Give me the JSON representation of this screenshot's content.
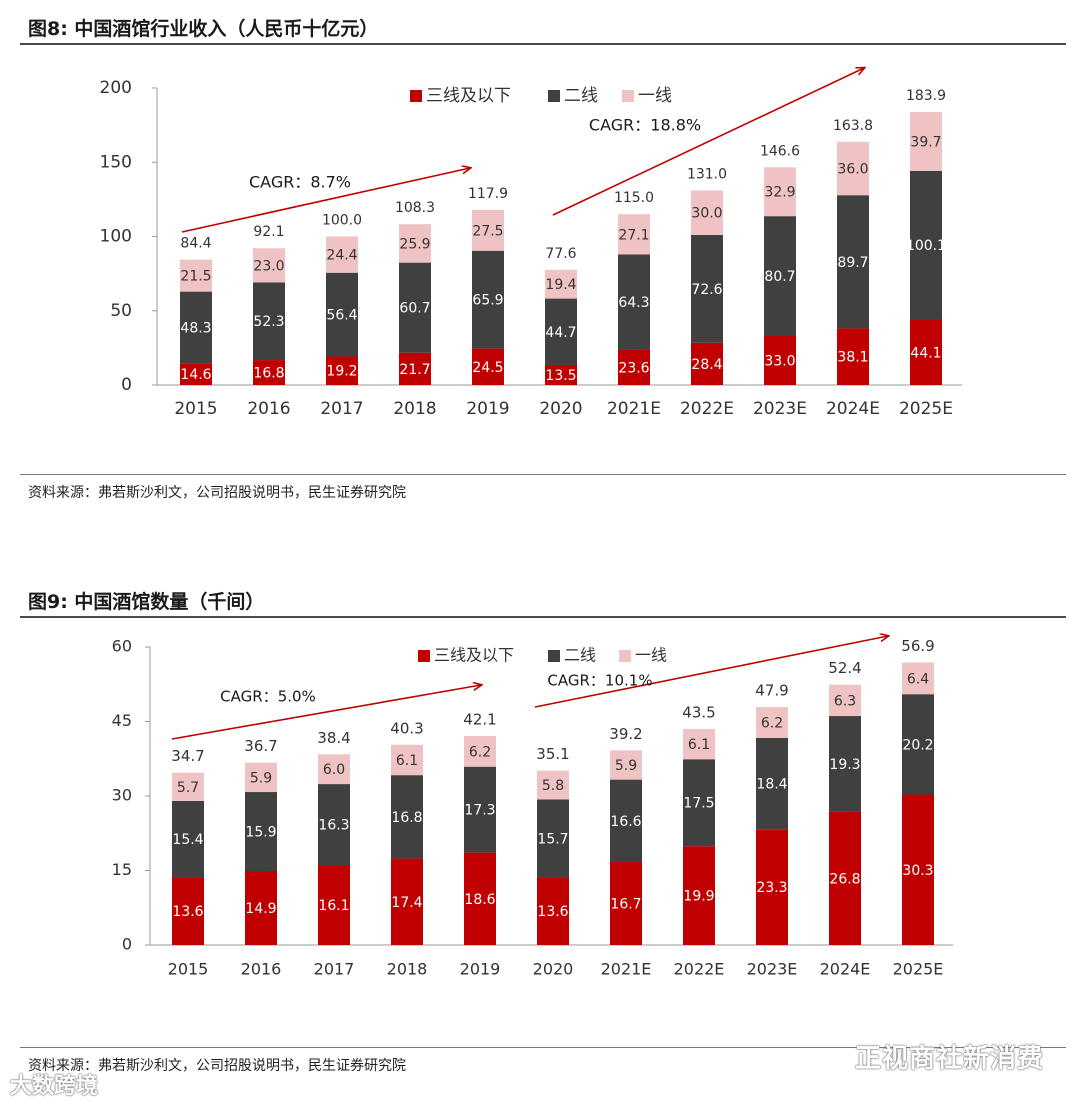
{
  "figure8": {
    "title": "图8: 中国酒馆行业收入（人民币十亿元）",
    "source": "资料来源：弗若斯沙利文，公司招股说明书，民生证券研究院"
  },
  "figure9": {
    "title": "图9: 中国酒馆数量（千间）",
    "source": "资料来源：弗若斯沙利文，公司招股说明书，民生证券研究院"
  },
  "watermark": {
    "right_text": "正视商社新消费",
    "left_text": "大数跨境"
  },
  "colors": {
    "tier3": "#c00000",
    "tier2": "#404040",
    "tier1": "#efc3c3",
    "arrow": "#c00000",
    "axis": "#9a9a9a"
  },
  "chart_data": [
    {
      "type": "bar",
      "stacked": true,
      "categories": [
        "2015",
        "2016",
        "2017",
        "2018",
        "2019",
        "2020",
        "2021E",
        "2022E",
        "2023E",
        "2024E",
        "2025E"
      ],
      "series": [
        {
          "name": "三线及以下",
          "color_key": "tier3",
          "values": [
            14.6,
            16.8,
            19.2,
            21.7,
            24.5,
            13.5,
            23.6,
            28.4,
            33.0,
            38.1,
            44.1
          ],
          "labels": [
            "14.6",
            "16.8",
            "19.2",
            "21.7",
            "24.5",
            "13.5",
            "23.6",
            "28.4",
            "33.0",
            "38.1",
            "44.1"
          ]
        },
        {
          "name": "二线",
          "color_key": "tier2",
          "values": [
            48.3,
            52.3,
            56.4,
            60.7,
            65.9,
            44.7,
            64.3,
            72.6,
            80.7,
            89.7,
            100.1
          ],
          "labels": [
            "48.3",
            "52.3",
            "56.4",
            "60.7",
            "65.9",
            "44.7",
            "64.3",
            "72.6",
            "80.7",
            "89.7",
            "100.1"
          ]
        },
        {
          "name": "一线",
          "color_key": "tier1",
          "values": [
            21.5,
            23.0,
            24.4,
            25.9,
            27.5,
            19.4,
            27.1,
            30.0,
            32.9,
            36.0,
            39.7
          ],
          "labels": [
            "21.5",
            "23.0",
            "24.4",
            "25.9",
            "27.5",
            "19.4",
            "27.1",
            "30.0",
            "32.9",
            "36.0",
            "39.7"
          ]
        }
      ],
      "totals": [
        "84.4",
        "92.1",
        "100.0",
        "108.3",
        "117.9",
        "77.6",
        "115.0",
        "131.0",
        "146.6",
        "163.8",
        "183.9"
      ],
      "ylim": [
        0,
        200
      ],
      "yticks": [
        "0",
        "50",
        "100",
        "150",
        "200"
      ],
      "legend_position": "top-center",
      "annotations": [
        {
          "text": "CAGR：8.7%",
          "from_category": 0,
          "to_category": 4
        },
        {
          "text": "CAGR：18.8%",
          "from_category": 5,
          "to_category": 10
        }
      ]
    },
    {
      "type": "bar",
      "stacked": true,
      "categories": [
        "2015",
        "2016",
        "2017",
        "2018",
        "2019",
        "2020",
        "2021E",
        "2022E",
        "2023E",
        "2024E",
        "2025E"
      ],
      "series": [
        {
          "name": "三线及以下",
          "color_key": "tier3",
          "values": [
            13.6,
            14.9,
            16.1,
            17.4,
            18.6,
            13.6,
            16.7,
            19.9,
            23.3,
            26.8,
            30.3
          ],
          "labels": [
            "13.6",
            "14.9",
            "16.1",
            "17.4",
            "18.6",
            "13.6",
            "16.7",
            "19.9",
            "23.3",
            "26.8",
            "30.3"
          ]
        },
        {
          "name": "二线",
          "color_key": "tier2",
          "values": [
            15.4,
            15.9,
            16.3,
            16.8,
            17.3,
            15.7,
            16.6,
            17.5,
            18.4,
            19.3,
            20.2
          ],
          "labels": [
            "15.4",
            "15.9",
            "16.3",
            "16.8",
            "17.3",
            "15.7",
            "16.6",
            "17.5",
            "18.4",
            "19.3",
            "20.2"
          ]
        },
        {
          "name": "一线",
          "color_key": "tier1",
          "values": [
            5.7,
            5.9,
            6.0,
            6.1,
            6.2,
            5.8,
            5.9,
            6.1,
            6.2,
            6.3,
            6.4
          ],
          "labels": [
            "5.7",
            "5.9",
            "6.0",
            "6.1",
            "6.2",
            "5.8",
            "5.9",
            "6.1",
            "6.2",
            "6.3",
            "6.4"
          ]
        }
      ],
      "totals": [
        "34.7",
        "36.7",
        "38.4",
        "40.3",
        "42.1",
        "35.1",
        "39.2",
        "43.5",
        "47.9",
        "52.4",
        "56.9"
      ],
      "ylim": [
        0,
        60
      ],
      "yticks": [
        "0",
        "15",
        "30",
        "45",
        "60"
      ],
      "legend_position": "top-center",
      "annotations": [
        {
          "text": "CAGR：5.0%",
          "from_category": 0,
          "to_category": 4
        },
        {
          "text": "CAGR：10.1%",
          "from_category": 5,
          "to_category": 10
        }
      ]
    }
  ]
}
